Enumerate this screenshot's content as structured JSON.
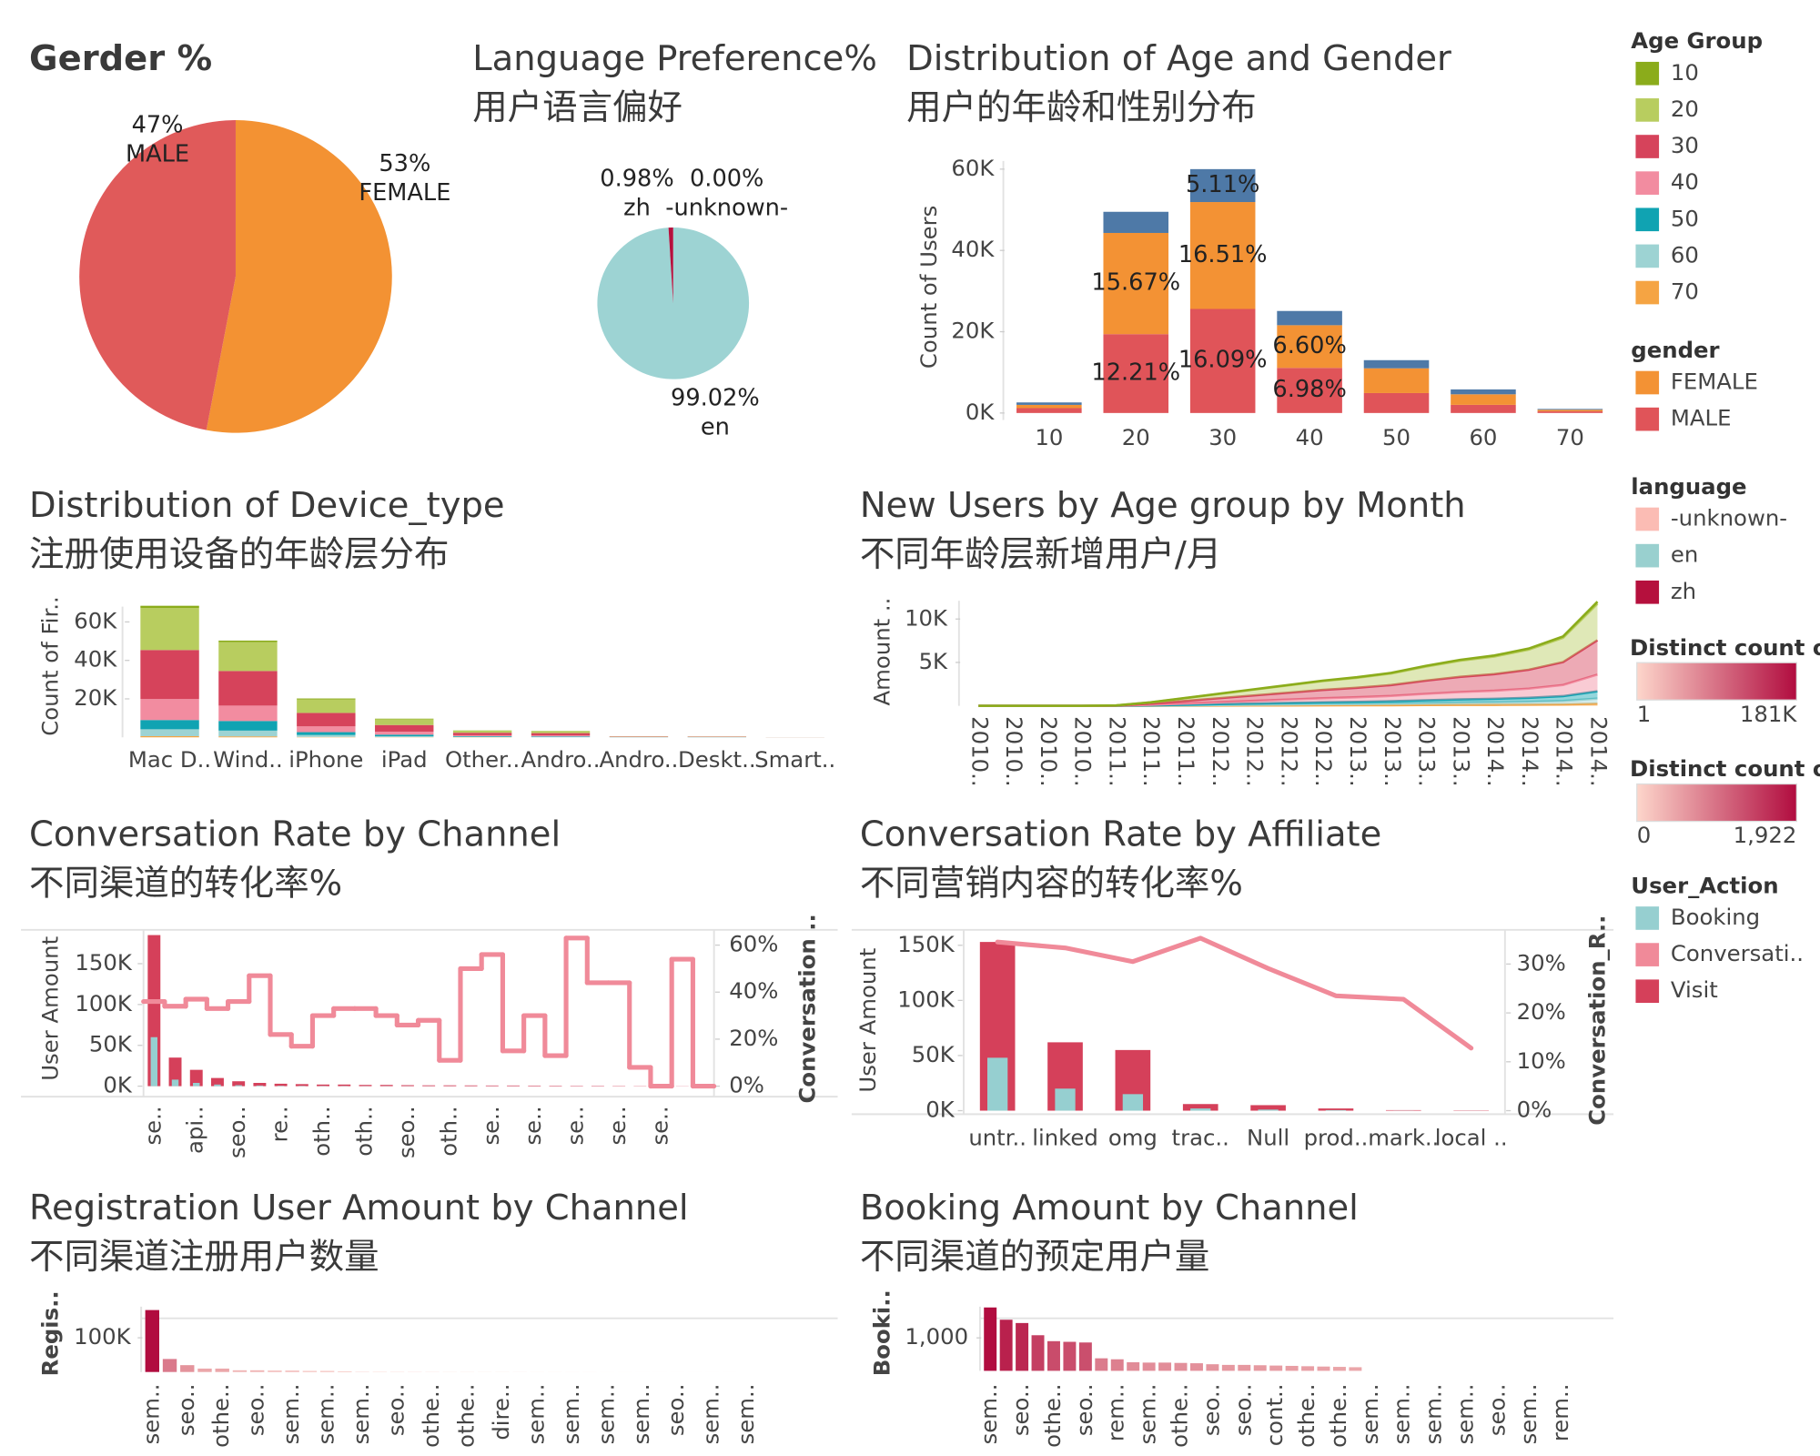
{
  "chart_data": [
    {
      "type": "pie",
      "title": "Gerder %",
      "categories": [
        "FEMALE",
        "MALE"
      ],
      "values": [
        53,
        47
      ],
      "value_labels": [
        "53%",
        "47%"
      ],
      "colors": [
        "#f39233",
        "#e05a5a"
      ]
    },
    {
      "type": "pie",
      "title": "Language Preference%",
      "subtitle": "用户语言偏好",
      "categories": [
        "en",
        "-unknown-",
        "zh"
      ],
      "values": [
        99.02,
        0.0,
        0.98
      ],
      "value_labels": [
        "99.02%",
        "0.00%",
        "0.98%"
      ],
      "colors": [
        "#9dd3d3",
        "#fbbcb4",
        "#b5103d"
      ]
    },
    {
      "type": "stacked_bar",
      "title": "Distribution of Age and Gender",
      "subtitle": "用户的年龄和性别分布",
      "y_label": "Count of Users",
      "categories": [
        "10",
        "20",
        "30",
        "40",
        "50",
        "60",
        "70"
      ],
      "series": [
        {
          "name": "MALE",
          "color": "#e05459",
          "values": [
            1200,
            19400,
            25600,
            11100,
            4900,
            2000,
            400
          ],
          "value_labels": [
            null,
            "12.21%",
            "16.09%",
            "6.98%",
            null,
            null,
            null
          ]
        },
        {
          "name": "FEMALE",
          "color": "#f39234",
          "values": [
            800,
            24900,
            26300,
            10500,
            6100,
            2600,
            400
          ],
          "value_labels": [
            null,
            "15.67%",
            "16.51%",
            "6.60%",
            null,
            null,
            null
          ]
        },
        {
          "color": "#4e79a7",
          "values": [
            600,
            5200,
            8100,
            3500,
            2000,
            1200,
            200
          ],
          "value_labels": [
            null,
            null,
            "5.11%",
            null,
            null,
            null,
            null
          ]
        }
      ],
      "ylim": [
        0,
        62000
      ],
      "yticks": [
        {
          "value": 0,
          "label": "0K"
        },
        {
          "value": 20000,
          "label": "20K"
        },
        {
          "value": 40000,
          "label": "40K"
        },
        {
          "value": 60000,
          "label": "60K"
        }
      ]
    },
    {
      "type": "stacked_bar",
      "title": "Distribution of Device_type",
      "subtitle": "注册使用设备的年龄层分布",
      "y_label": "Count of Fir..",
      "categories": [
        "Mac D..",
        "Wind..",
        "iPhone",
        "iPad",
        "Other..",
        "Andro..",
        "Andro..",
        "Deskt..",
        "Smart.."
      ],
      "series": [
        {
          "name": "70",
          "color": "#f5a443",
          "values": [
            600,
            500,
            200,
            100,
            100,
            0,
            0,
            0,
            0
          ]
        },
        {
          "name": "60",
          "color": "#9dd3d3",
          "values": [
            3600,
            3000,
            1000,
            500,
            200,
            200,
            50,
            50,
            10
          ]
        },
        {
          "name": "50",
          "color": "#10a3b2",
          "values": [
            4800,
            5000,
            1500,
            800,
            300,
            300,
            50,
            50,
            10
          ]
        },
        {
          "name": "40",
          "color": "#f28ca0",
          "values": [
            10900,
            8000,
            3000,
            1500,
            500,
            500,
            100,
            100,
            20
          ]
        },
        {
          "name": "30",
          "color": "#d6435b",
          "values": [
            25500,
            18000,
            7000,
            3500,
            1300,
            1200,
            200,
            150,
            30
          ]
        },
        {
          "name": "20",
          "color": "#b8cd5f",
          "values": [
            21800,
            15000,
            7000,
            3000,
            1100,
            1000,
            150,
            120,
            20
          ]
        },
        {
          "name": "10",
          "color": "#8bac1b",
          "values": [
            1200,
            800,
            500,
            300,
            100,
            100,
            20,
            20,
            5
          ]
        }
      ],
      "ylim": [
        0,
        74000
      ],
      "yticks": [
        {
          "value": 20000,
          "label": "20K"
        },
        {
          "value": 40000,
          "label": "40K"
        },
        {
          "value": 60000,
          "label": "60K"
        }
      ]
    },
    {
      "type": "stacked_area",
      "title": "New Users by Age group by Month",
      "subtitle": "不同年龄层新增用户/月",
      "y_label": "Amount ..",
      "categories": [
        "2010..",
        "2010..",
        "2010..",
        "2010..",
        "2011..",
        "2011..",
        "2011..",
        "2012..",
        "2012..",
        "2012..",
        "2012..",
        "2013..",
        "2013..",
        "2013..",
        "2013..",
        "2014..",
        "2014..",
        "2014..",
        "2014.."
      ],
      "series": [
        {
          "name": "70",
          "color": "#f5a443",
          "values": [
            0,
            0,
            0,
            0,
            1,
            8,
            18,
            28,
            38,
            48,
            58,
            66,
            76,
            92,
            106,
            116,
            132,
            160,
            240
          ]
        },
        {
          "name": "60",
          "color": "#9dd3d3",
          "values": [
            0,
            0,
            0,
            0,
            2,
            20,
            45,
            70,
            95,
            120,
            145,
            165,
            190,
            230,
            265,
            290,
            330,
            400,
            600
          ]
        },
        {
          "name": "50",
          "color": "#10a3b2",
          "values": [
            0,
            0,
            0,
            0,
            4,
            28,
            63,
            98,
            133,
            168,
            203,
            231,
            266,
            322,
            371,
            406,
            462,
            560,
            840
          ]
        },
        {
          "name": "40",
          "color": "#f28ca0",
          "values": [
            0,
            0,
            0,
            0,
            8,
            64,
            144,
            224,
            304,
            384,
            464,
            528,
            608,
            736,
            848,
            928,
            1056,
            1280,
            1920
          ]
        },
        {
          "name": "30",
          "color": "#d6435b",
          "values": [
            0,
            0,
            0,
            0,
            16,
            132,
            297,
            462,
            627,
            792,
            957,
            1089,
            1254,
            1518,
            1749,
            1914,
            2178,
            2640,
            3960
          ]
        },
        {
          "name": "20",
          "color": "#b8cd5f",
          "values": [
            0,
            0,
            0,
            0,
            18,
            140,
            315,
            490,
            665,
            840,
            1015,
            1155,
            1330,
            1610,
            1855,
            2030,
            2310,
            2800,
            4200
          ]
        },
        {
          "name": "10",
          "color": "#8bac1b",
          "values": [
            0,
            0,
            0,
            0,
            1,
            8,
            18,
            28,
            38,
            48,
            58,
            66,
            76,
            92,
            106,
            116,
            132,
            160,
            240
          ]
        }
      ],
      "ylim": [
        0,
        12500
      ],
      "yticks": [
        {
          "value": 5000,
          "label": "5K"
        },
        {
          "value": 10000,
          "label": "10K"
        }
      ]
    },
    {
      "type": "bar_line",
      "title": "Conversation Rate by Channel",
      "subtitle": "不同渠道的转化率%",
      "y_label": "User Amount",
      "y2_label": "Conversation ..",
      "step": true,
      "categories": [
        "se..",
        null,
        "api..",
        null,
        "seo..",
        null,
        "re..",
        null,
        "oth..",
        null,
        "oth..",
        null,
        "seo..",
        null,
        "oth..",
        null,
        "se..",
        null,
        "se..",
        null,
        "se..",
        null,
        "se..",
        null,
        "se..",
        null,
        null
      ],
      "series": [
        {
          "name": "Visit",
          "color": "#d5405a",
          "values": [
            185000,
            35000,
            20000,
            10000,
            6000,
            4000,
            3000,
            2500,
            2000,
            2000,
            1500,
            1500,
            1200,
            1000,
            1000,
            900,
            800,
            800,
            700,
            600,
            500,
            500,
            400,
            300,
            200,
            200,
            100
          ]
        },
        {
          "name": "Booking",
          "color": "#96cfd0",
          "values": [
            60000,
            8000,
            4000,
            2000,
            1200,
            800,
            500,
            400,
            300,
            300,
            200,
            200,
            150,
            120,
            100,
            90,
            80,
            70,
            60,
            50,
            40,
            40,
            30,
            20,
            10,
            10,
            0
          ]
        },
        {
          "name": "Conversati..",
          "color": "#f08a99",
          "axis": "y2",
          "values": [
            36,
            34,
            37,
            33,
            36,
            47,
            22,
            17,
            30,
            33,
            33,
            30,
            26,
            28,
            11,
            50,
            56,
            15,
            30,
            13,
            63,
            44,
            44,
            8,
            0,
            54,
            0
          ]
        }
      ],
      "ylim": [
        0,
        190000
      ],
      "yticks": [
        {
          "value": 0,
          "label": "0K"
        },
        {
          "value": 50000,
          "label": "50K"
        },
        {
          "value": 100000,
          "label": "100K"
        },
        {
          "value": 150000,
          "label": "150K"
        }
      ],
      "y2lim": [
        0,
        66
      ],
      "y2ticks": [
        {
          "value": 0,
          "label": "0%"
        },
        {
          "value": 20,
          "label": "20%"
        },
        {
          "value": 40,
          "label": "40%"
        },
        {
          "value": 60,
          "label": "60%"
        }
      ]
    },
    {
      "type": "bar_line",
      "title": "Conversation Rate by Affiliate",
      "subtitle": "不同营销内容的转化率%",
      "y_label": "User Amount",
      "y2_label": "Conversation_R..",
      "step": false,
      "categories": [
        "untr..",
        "linked",
        "omg",
        "trac..",
        "Null",
        "prod..",
        "mark..",
        "local .."
      ],
      "series": [
        {
          "name": "Visit",
          "color": "#d5405a",
          "values": [
            153000,
            62000,
            55000,
            6000,
            5000,
            2000,
            500,
            300
          ]
        },
        {
          "name": "Booking",
          "color": "#96cfd0",
          "values": [
            48000,
            20000,
            15000,
            2000,
            1000,
            500,
            100,
            50
          ]
        },
        {
          "name": "Conversati..",
          "color": "#f08a99",
          "axis": "y2",
          "values": [
            34.5,
            33.3,
            30.5,
            35.3,
            29.1,
            23.5,
            22.8,
            12.8
          ]
        }
      ],
      "ylim": [
        0,
        164000
      ],
      "yticks": [
        {
          "value": 0,
          "label": "0K"
        },
        {
          "value": 50000,
          "label": "50K"
        },
        {
          "value": 100000,
          "label": "100K"
        },
        {
          "value": 150000,
          "label": "150K"
        }
      ],
      "y2lim": [
        0,
        37
      ],
      "y2ticks": [
        {
          "value": 0,
          "label": "0%"
        },
        {
          "value": 10,
          "label": "10%"
        },
        {
          "value": 20,
          "label": "20%"
        },
        {
          "value": 30,
          "label": "30%"
        }
      ]
    },
    {
      "type": "bar",
      "title": "Registration User Amount by Channel",
      "subtitle": "不同渠道注册用户数量",
      "y_label": "Regis..",
      "color_legend": 3,
      "categories": [
        "sem..",
        null,
        "seo..",
        null,
        "othe..",
        null,
        "seo..",
        null,
        "sem..",
        null,
        "sem..",
        null,
        "sem..",
        null,
        "seo..",
        null,
        "othe..",
        null,
        "othe..",
        null,
        "dire..",
        null,
        "sem..",
        null,
        "sem..",
        null,
        "sem..",
        null,
        "sem..",
        null,
        "seo..",
        null,
        "sem..",
        null,
        "sem..",
        null
      ],
      "values": [
        181000,
        38000,
        20000,
        10000,
        10000,
        5000,
        5000,
        4000,
        4000,
        3000,
        3000,
        2000,
        900,
        800,
        700,
        600,
        500,
        400,
        400,
        300,
        300,
        250,
        200,
        200,
        150,
        150,
        100,
        100,
        80,
        80,
        60,
        50,
        40,
        30,
        20,
        10
      ],
      "ylim": [
        0,
        225000
      ],
      "yticks": [
        {
          "value": 100000,
          "label": "100K"
        }
      ]
    },
    {
      "type": "bar",
      "title": "Booking Amount by Channel",
      "subtitle": "不同渠道的预定用户量",
      "y_label": "Booki..",
      "color_legend": 4,
      "categories": [
        "sem..",
        null,
        "seo..",
        null,
        "othe..",
        null,
        "seo..",
        null,
        "rem..",
        null,
        "sem..",
        null,
        "othe..",
        null,
        "seo..",
        null,
        "seo..",
        null,
        "cont..",
        null,
        "othe..",
        null,
        "othe..",
        null,
        "sem..",
        null,
        "sem..",
        null,
        "sem..",
        null,
        "sem..",
        null,
        "seo..",
        null,
        "sem..",
        null,
        "rem..",
        null
      ],
      "values": [
        1922,
        1550,
        1450,
        1080,
        900,
        880,
        860,
        380,
        350,
        260,
        250,
        250,
        240,
        230,
        200,
        180,
        180,
        170,
        160,
        150,
        140,
        130,
        120,
        110,
        0,
        0,
        0,
        0,
        0,
        0,
        0,
        0,
        0,
        0,
        0,
        0,
        0,
        0
      ],
      "ylim": [
        0,
        2300
      ],
      "yticks": [
        {
          "value": 1000,
          "label": "1,000"
        }
      ]
    }
  ],
  "legends": [
    {
      "title": "Age Group",
      "items": [
        {
          "label": "10",
          "color": "#8bac1b"
        },
        {
          "label": "20",
          "color": "#b8cd5f"
        },
        {
          "label": "30",
          "color": "#d6435b"
        },
        {
          "label": "40",
          "color": "#f28ca0"
        },
        {
          "label": "50",
          "color": "#10a3b2"
        },
        {
          "label": "60",
          "color": "#9dd3d3"
        },
        {
          "label": "70",
          "color": "#f5a443"
        }
      ]
    },
    {
      "title": "gender",
      "items": [
        {
          "label": "FEMALE",
          "color": "#f39234"
        },
        {
          "label": "MALE",
          "color": "#e05459"
        }
      ]
    },
    {
      "title": "language",
      "items": [
        {
          "label": "-unknown-",
          "color": "#fbbcb4"
        },
        {
          "label": "en",
          "color": "#99d0cf"
        },
        {
          "label": "zh",
          "color": "#b5103d"
        }
      ]
    },
    {
      "title": "Distinct count o..",
      "colors": [
        "#fdd6cb",
        "#b10c3f"
      ],
      "min": 1,
      "max": {
        "value": 181000,
        "label": "181K"
      }
    },
    {
      "title": "Distinct count o..",
      "colors": [
        "#fdd6cb",
        "#b10c3f"
      ],
      "min": 0,
      "max": {
        "value": 1922,
        "label": "1,922"
      }
    },
    {
      "title": "User_Action",
      "items": [
        {
          "label": "Booking",
          "color": "#96cfd0"
        },
        {
          "label": "Conversati..",
          "color": "#f08a99"
        },
        {
          "label": "Visit",
          "color": "#d5405a"
        }
      ]
    }
  ]
}
